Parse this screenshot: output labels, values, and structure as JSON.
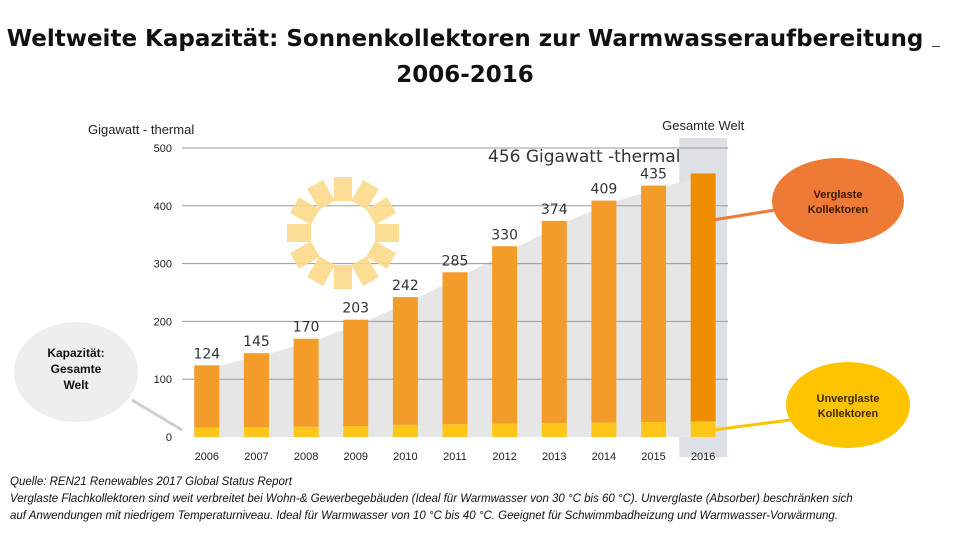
{
  "title_line1": "Weltweite Kapazität: Sonnenkollektoren zur Warmwasseraufbereitung",
  "title_line2": "2006-2016",
  "chart_data": {
    "type": "bar",
    "stacked": true,
    "ylabel": "Gigawatt - thermal",
    "ylim": [
      0,
      500
    ],
    "yticks": [
      0,
      100,
      200,
      300,
      400,
      500
    ],
    "grid": true,
    "categories": [
      "2006",
      "2007",
      "2008",
      "2009",
      "2010",
      "2011",
      "2012",
      "2013",
      "2014",
      "2015",
      "2016"
    ],
    "totals": [
      124,
      145,
      170,
      203,
      242,
      285,
      330,
      374,
      409,
      435,
      456
    ],
    "series": [
      {
        "name": "Verglaste Kollektoren",
        "color": "#f39c2a",
        "values": [
          108,
          128,
          152,
          184,
          221,
          263,
          307,
          350,
          384,
          409,
          429
        ]
      },
      {
        "name": "Unverglaste Kollektoren",
        "color": "#ffc61a",
        "values": [
          16,
          17,
          18,
          19,
          21,
          22,
          23,
          24,
          25,
          26,
          27
        ]
      }
    ],
    "highlight": {
      "category": "2016",
      "bar_color": "#ef8c00",
      "label": "Gesamte Welt",
      "annotation": "456 Gigawatt",
      "annotation_suffix": "-thermal"
    },
    "callouts": {
      "total": {
        "line1": "Kapazität:",
        "line2": "Gesamte",
        "line3": "Welt"
      },
      "glazed": {
        "line1": "Verglaste",
        "line2": "Kollektoren",
        "color": "#ee7a35"
      },
      "unglazed": {
        "line1": "Unverglaste",
        "line2": "Kollektoren",
        "color": "#ffc400"
      }
    },
    "colors": {
      "total_area": "#e6e6e6",
      "sun": "#fbd98a"
    }
  },
  "footer": {
    "source": "Quelle: REN21 Renewables 2017 Global Status Report",
    "note1": "Verglaste Flachkollektoren sind weit verbreitet bei Wohn-& Gewerbegebäuden (Ideal für Warmwasser von 30 °C bis 60 °C). Unverglaste (Absorber) beschränken sich",
    "note2": "auf Anwendungen mit niedrigem Temperaturniveau. Ideal für Warmwasser von 10 °C bis 40 °C. Geeignet für Schwimmbadheizung und Warmwasser-Vorwärmung."
  }
}
